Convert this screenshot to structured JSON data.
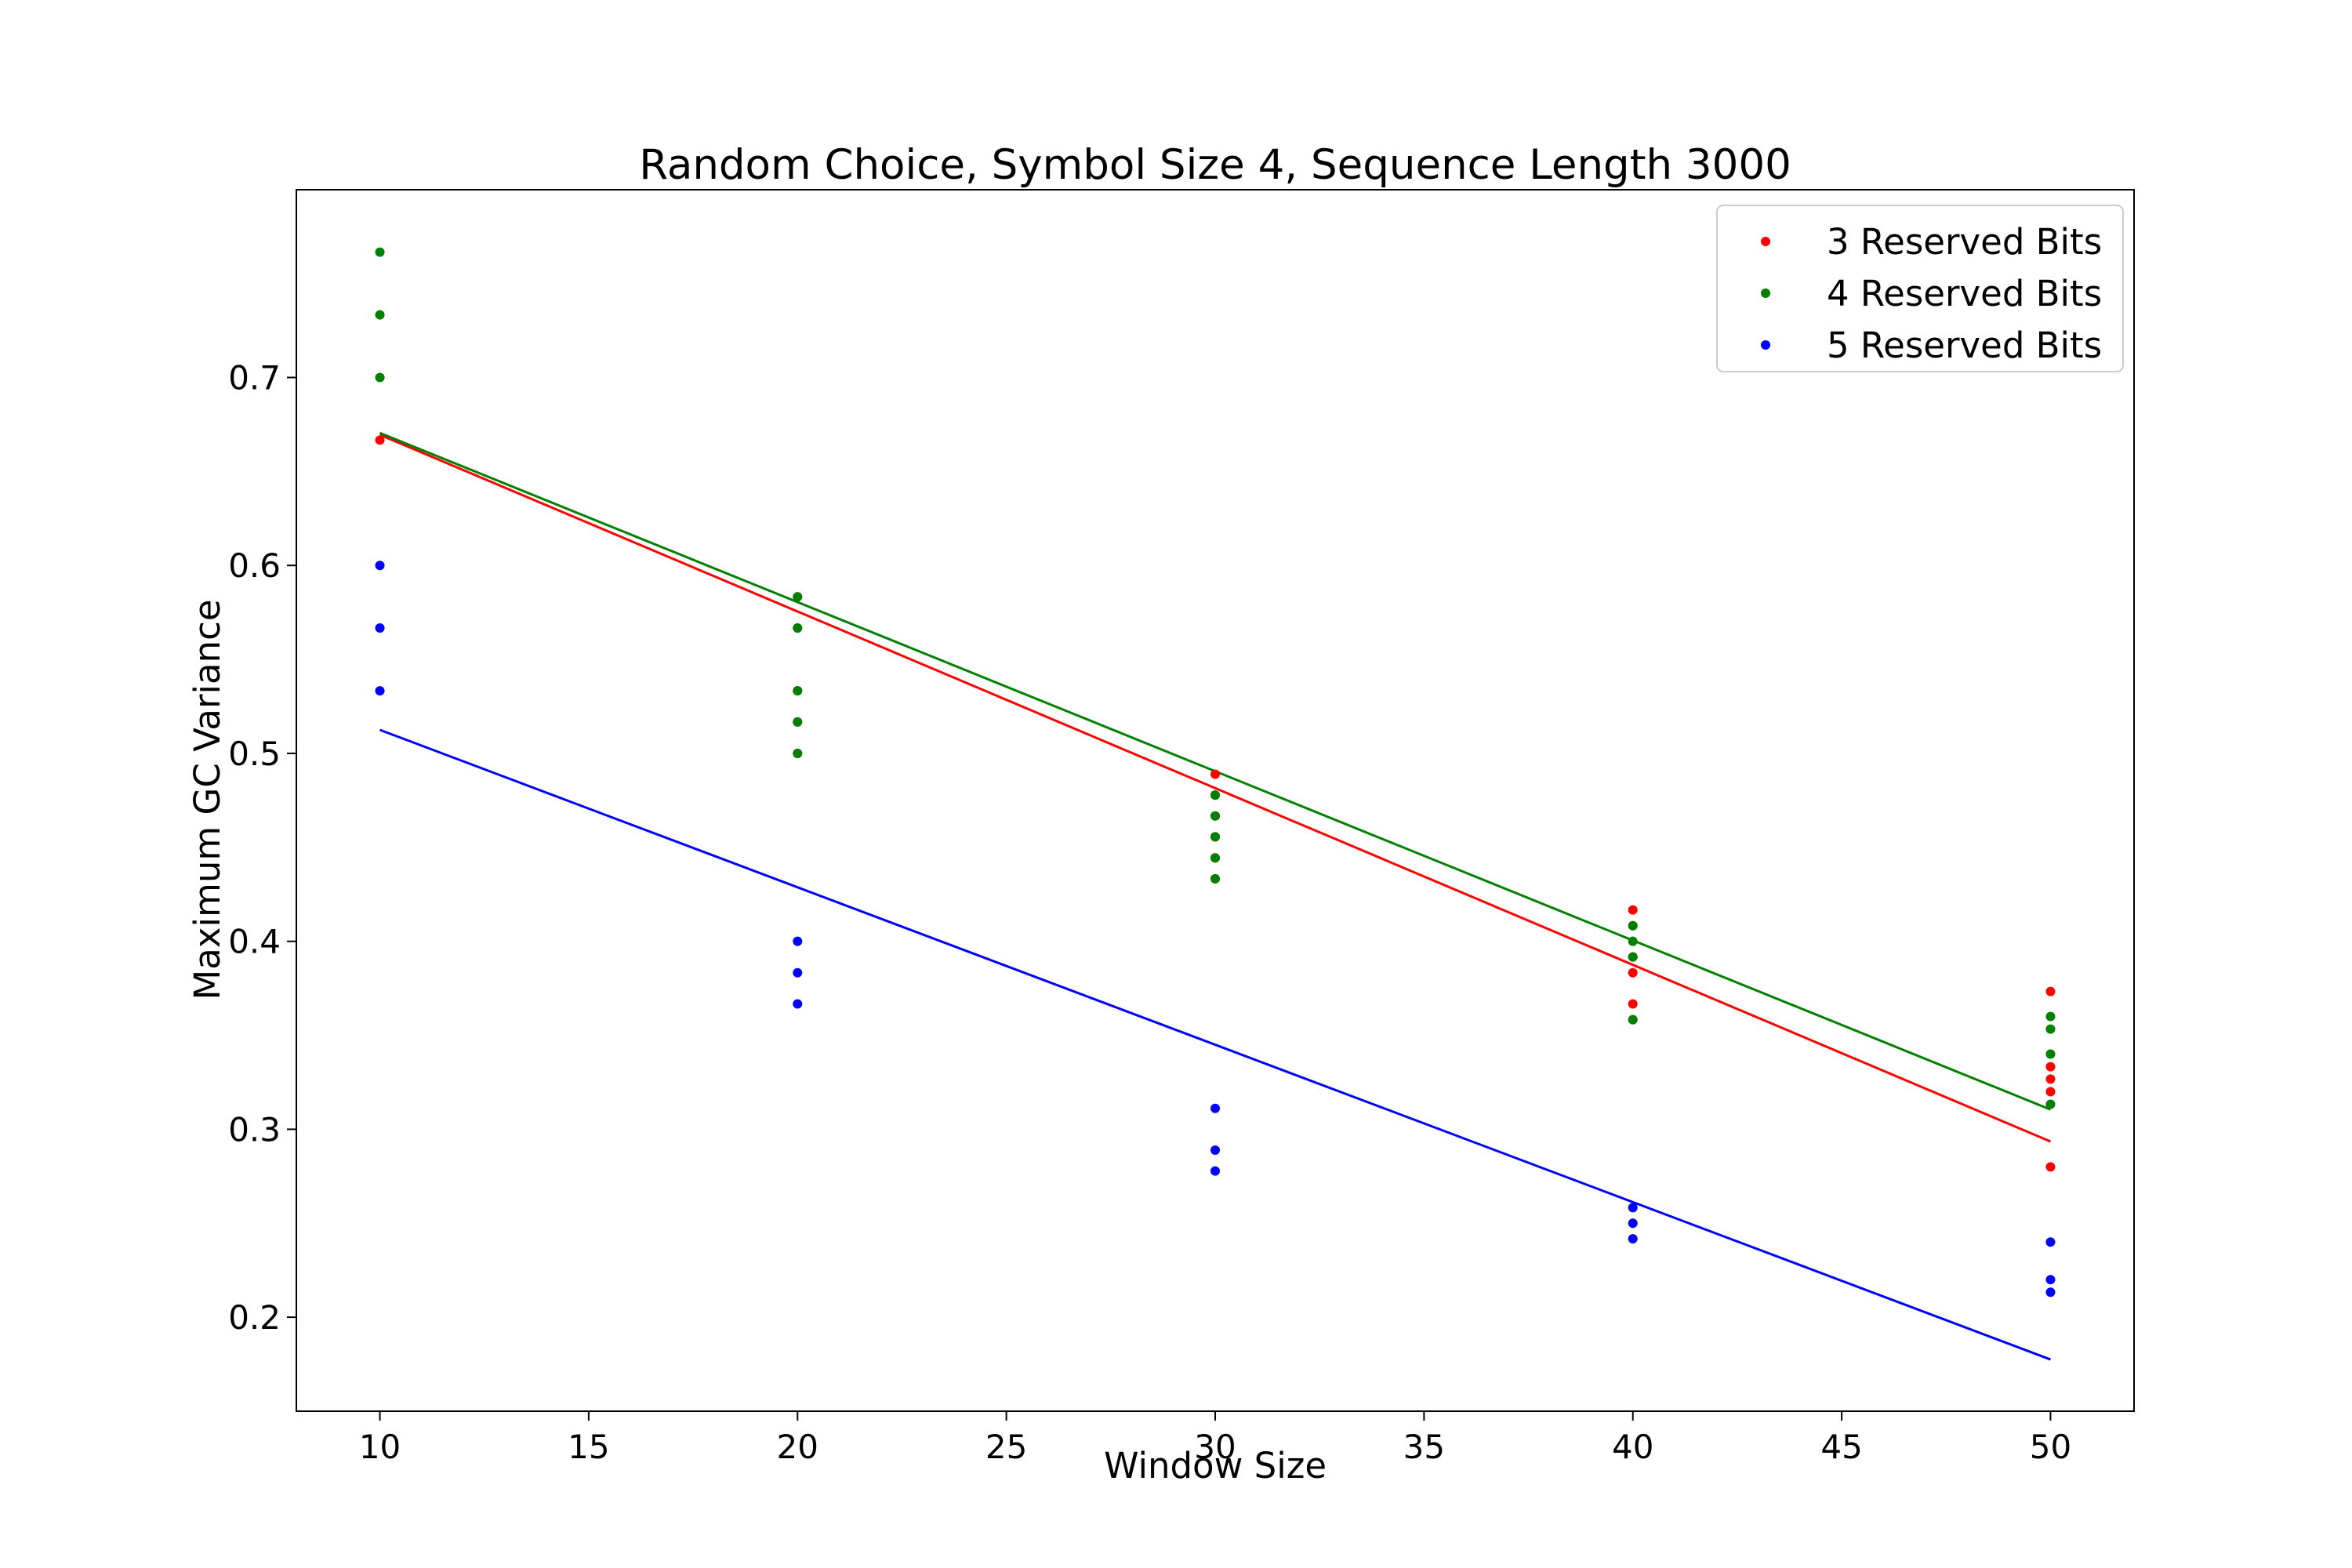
{
  "chart_data": {
    "type": "scatter",
    "title": "Random Choice, Symbol Size 4, Sequence Length 3000",
    "xlabel": "Window Size",
    "ylabel": "Maximum GC Variance",
    "xlim": [
      8,
      52
    ],
    "ylim": [
      0.15,
      0.7999
    ],
    "xticks": [
      10,
      15,
      20,
      25,
      30,
      35,
      40,
      45,
      50
    ],
    "yticks": [
      0.2,
      0.3,
      0.4,
      0.5,
      0.6,
      0.7
    ],
    "grid": false,
    "legend_position": "top-right",
    "series": [
      {
        "name": "3 Reserved Bits",
        "color": "#ff0000",
        "points": [
          [
            10,
            0.6667
          ],
          [
            20,
            0.5833
          ],
          [
            20,
            0.5667
          ],
          [
            20,
            0.5333
          ],
          [
            20,
            0.5167
          ],
          [
            20,
            0.5
          ],
          [
            30,
            0.4889
          ],
          [
            30,
            0.4778
          ],
          [
            30,
            0.4667
          ],
          [
            30,
            0.4556
          ],
          [
            30,
            0.4444
          ],
          [
            30,
            0.4333
          ],
          [
            40,
            0.4167
          ],
          [
            40,
            0.4083
          ],
          [
            40,
            0.3917
          ],
          [
            40,
            0.3833
          ],
          [
            40,
            0.3667
          ],
          [
            40,
            0.3583
          ],
          [
            50,
            0.3733
          ],
          [
            50,
            0.3333
          ],
          [
            50,
            0.3267
          ],
          [
            50,
            0.32
          ],
          [
            50,
            0.28
          ]
        ],
        "fit": {
          "x": [
            10,
            50
          ],
          "y": [
            0.6695,
            0.2935
          ]
        }
      },
      {
        "name": "4 Reserved Bits",
        "color": "#008000",
        "points": [
          [
            10,
            0.7667
          ],
          [
            10,
            0.7333
          ],
          [
            10,
            0.7
          ],
          [
            20,
            0.5833
          ],
          [
            20,
            0.5667
          ],
          [
            20,
            0.5333
          ],
          [
            20,
            0.5167
          ],
          [
            20,
            0.5
          ],
          [
            30,
            0.4778
          ],
          [
            30,
            0.4667
          ],
          [
            30,
            0.4556
          ],
          [
            30,
            0.4444
          ],
          [
            30,
            0.4333
          ],
          [
            40,
            0.4083
          ],
          [
            40,
            0.4
          ],
          [
            40,
            0.3917
          ],
          [
            40,
            0.3583
          ],
          [
            50,
            0.36
          ],
          [
            50,
            0.3533
          ],
          [
            50,
            0.34
          ],
          [
            50,
            0.3133
          ]
        ],
        "fit": {
          "x": [
            10,
            50
          ],
          "y": [
            0.6705,
            0.3105
          ]
        }
      },
      {
        "name": "5 Reserved Bits",
        "color": "#0000ff",
        "points": [
          [
            10,
            0.6
          ],
          [
            10,
            0.5667
          ],
          [
            10,
            0.5333
          ],
          [
            20,
            0.4
          ],
          [
            20,
            0.3833
          ],
          [
            20,
            0.3667
          ],
          [
            30,
            0.3111
          ],
          [
            30,
            0.2889
          ],
          [
            30,
            0.2778
          ],
          [
            40,
            0.2583
          ],
          [
            40,
            0.25
          ],
          [
            40,
            0.2417
          ],
          [
            50,
            0.24
          ],
          [
            50,
            0.22
          ],
          [
            50,
            0.2133
          ]
        ],
        "fit": {
          "x": [
            10,
            50
          ],
          "y": [
            0.5125,
            0.1775
          ]
        }
      }
    ]
  }
}
